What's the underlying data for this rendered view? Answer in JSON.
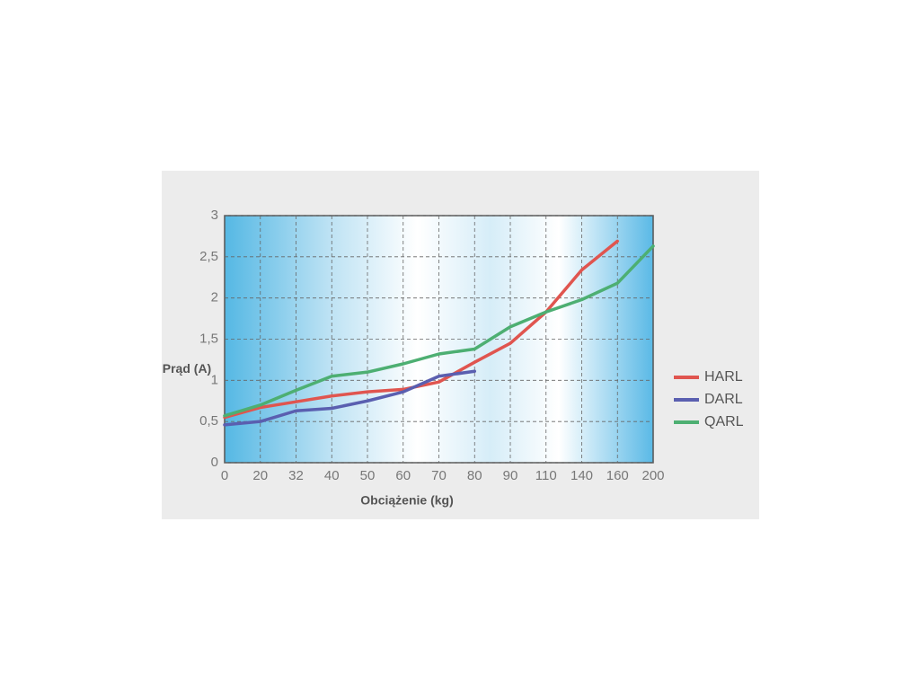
{
  "chart_data": {
    "type": "line",
    "x_label": "Obciążenie (kg)",
    "y_label": "Prąd (A)",
    "categories": [
      "0",
      "20",
      "32",
      "40",
      "50",
      "60",
      "70",
      "80",
      "90",
      "110",
      "140",
      "160",
      "200"
    ],
    "series": [
      {
        "name": "HARL",
        "color": "#e0554f",
        "values": [
          0.55,
          0.67,
          0.74,
          0.81,
          0.86,
          0.89,
          0.98,
          1.22,
          1.45,
          1.83,
          2.34,
          2.69,
          null
        ]
      },
      {
        "name": "DARL",
        "color": "#5a5fb0",
        "values": [
          0.46,
          0.5,
          0.63,
          0.66,
          0.75,
          0.86,
          1.05,
          1.11,
          null,
          null,
          null,
          null,
          null
        ]
      },
      {
        "name": "QARL",
        "color": "#4daf72",
        "values": [
          0.57,
          0.7,
          0.88,
          1.05,
          1.1,
          1.2,
          1.32,
          1.38,
          1.65,
          1.83,
          1.98,
          2.18,
          2.63
        ]
      }
    ],
    "ylim": [
      0,
      3
    ],
    "yticks": [
      0,
      {
        "value": 0.5,
        "label": "0,5"
      },
      1,
      {
        "value": 1.5,
        "label": "1,5"
      },
      2,
      {
        "value": 2.5,
        "label": "2,5"
      },
      3
    ],
    "grid": true
  }
}
